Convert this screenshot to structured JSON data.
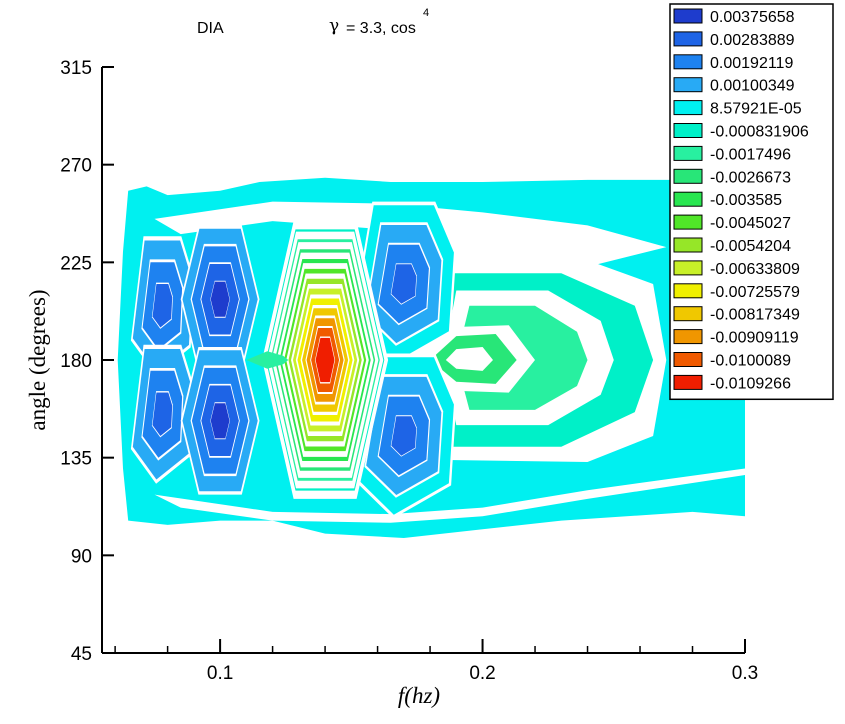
{
  "chart_data": {
    "type": "contour",
    "title_left": "DIA",
    "title_symbol": "γ",
    "title_main": "= 3.3, cos",
    "title_superscript": "4",
    "xlabel": "f(hz)",
    "ylabel": "angle (degrees)",
    "xlim": [
      0.055,
      0.3
    ],
    "ylim": [
      45,
      315
    ],
    "x_ticks": [
      0.1,
      0.2,
      0.3
    ],
    "x_tick_labels": [
      "0.1",
      "0.2",
      "0.3"
    ],
    "x_minor_ticks": [
      0.06,
      0.08,
      0.12,
      0.14,
      0.16,
      0.18,
      0.22,
      0.24,
      0.26,
      0.28
    ],
    "y_ticks": [
      45,
      90,
      135,
      180,
      225,
      270,
      315
    ],
    "y_tick_labels": [
      "45",
      "90",
      "135",
      "180",
      "225",
      "270",
      "315"
    ],
    "legend": {
      "placement": "top-right",
      "levels": [
        {
          "label": "0.00375658",
          "color": "#1e3ccd"
        },
        {
          "label": "0.00283889",
          "color": "#1e64e6"
        },
        {
          "label": "0.00192119",
          "color": "#1e82f0"
        },
        {
          "label": "0.00100349",
          "color": "#28aaf5"
        },
        {
          "label": "8.57921E-05",
          "color": "#00f0f0"
        },
        {
          "label": "-0.000831906",
          "color": "#00f0c8"
        },
        {
          "label": "-0.0017496",
          "color": "#28f0a0"
        },
        {
          "label": "-0.0026673",
          "color": "#28e678"
        },
        {
          "label": "-0.003585",
          "color": "#28e650"
        },
        {
          "label": "-0.0045027",
          "color": "#50e628"
        },
        {
          "label": "-0.0054204",
          "color": "#96e628"
        },
        {
          "label": "-0.00633809",
          "color": "#c8f028"
        },
        {
          "label": "-0.00725579",
          "color": "#f0f000"
        },
        {
          "label": "-0.00817349",
          "color": "#f0c800"
        },
        {
          "label": "-0.00909119",
          "color": "#f09600"
        },
        {
          "label": "-0.0100089",
          "color": "#f05a00"
        },
        {
          "label": "-0.0109266",
          "color": "#f01e00"
        }
      ]
    },
    "features": [
      {
        "name": "positive-lobe-upper-1",
        "x": 0.078,
        "y": 205,
        "level": 2
      },
      {
        "name": "positive-lobe-lower-1",
        "x": 0.078,
        "y": 155,
        "level": 2
      },
      {
        "name": "positive-lobe-upper-2",
        "x": 0.1,
        "y": 210,
        "level": 0
      },
      {
        "name": "positive-lobe-lower-2",
        "x": 0.1,
        "y": 150,
        "level": 0
      },
      {
        "name": "negative-core",
        "x": 0.14,
        "y": 180,
        "level": 16
      },
      {
        "name": "positive-lobe-upper-3",
        "x": 0.17,
        "y": 218,
        "level": 1
      },
      {
        "name": "positive-lobe-lower-3",
        "x": 0.17,
        "y": 145,
        "level": 1
      },
      {
        "name": "negative-lobe-4",
        "x": 0.19,
        "y": 180,
        "level": 8
      }
    ]
  }
}
